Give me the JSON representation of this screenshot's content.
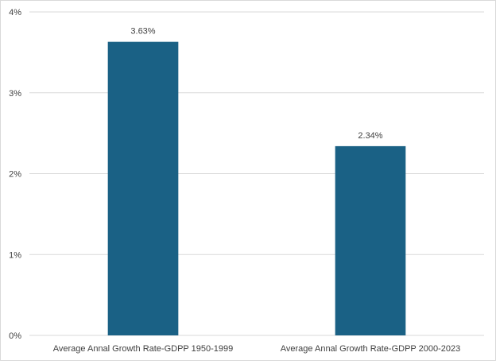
{
  "chart_data": {
    "type": "bar",
    "title": "",
    "xlabel": "",
    "ylabel": "",
    "categories": [
      "Average Annal Growth Rate-GDPP 1950-1999",
      "Average Annal Growth Rate-GDPP 2000-2023"
    ],
    "values": [
      3.63,
      2.34
    ],
    "data_labels": [
      "3.63%",
      "2.34%"
    ],
    "ylim": [
      0,
      4
    ],
    "yticks": [
      0,
      1,
      2,
      3,
      4
    ],
    "ytick_labels": [
      "0%",
      "1%",
      "2%",
      "3%",
      "4%"
    ],
    "grid": true,
    "legend": "none",
    "colors": {
      "bar": "#1a6185",
      "grid": "#d9d9d9",
      "text": "#404040"
    }
  }
}
